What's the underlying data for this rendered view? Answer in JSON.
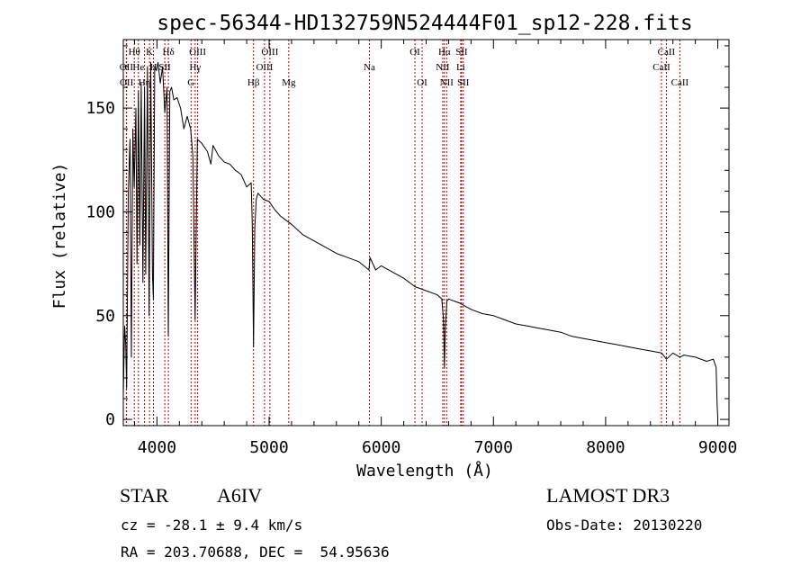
{
  "chart_data": {
    "type": "line",
    "title": "spec-56344-HD132759N524444F01_sp12-228.fits",
    "xlabel": "Wavelength (Å)",
    "ylabel": "Flux (relative)",
    "xlim": [
      3700,
      9100
    ],
    "ylim": [
      -3,
      183
    ],
    "xticks": [
      4000,
      5000,
      6000,
      7000,
      8000,
      9000
    ],
    "yticks": [
      0,
      50,
      100,
      150
    ],
    "xtick_labels": [
      "4000",
      "5000",
      "6000",
      "7000",
      "8000",
      "9000"
    ],
    "ytick_labels": [
      "0",
      "50",
      "100",
      "150"
    ],
    "series": [
      {
        "name": "flux",
        "x": [
          3700,
          3712,
          3722,
          3730,
          3745,
          3760,
          3772,
          3785,
          3797,
          3812,
          3822,
          3835,
          3848,
          3860,
          3875,
          3889,
          3900,
          3915,
          3930,
          3945,
          3960,
          3968,
          3980,
          3995,
          4010,
          4030,
          4050,
          4070,
          4090,
          4101,
          4115,
          4130,
          4150,
          4180,
          4210,
          4240,
          4270,
          4300,
          4320,
          4340,
          4360,
          4380,
          4400,
          4450,
          4481,
          4500,
          4550,
          4600,
          4650,
          4700,
          4750,
          4800,
          4840,
          4850,
          4861,
          4872,
          4885,
          4900,
          4950,
          5000,
          5050,
          5100,
          5150,
          5200,
          5300,
          5400,
          5500,
          5600,
          5700,
          5800,
          5890,
          5900,
          5950,
          6000,
          6100,
          6200,
          6300,
          6400,
          6500,
          6540,
          6555,
          6563,
          6571,
          6585,
          6600,
          6700,
          6800,
          6900,
          7000,
          7100,
          7200,
          7300,
          7400,
          7500,
          7600,
          7700,
          7800,
          7900,
          8000,
          8100,
          8200,
          8300,
          8400,
          8500,
          8542,
          8600,
          8662,
          8700,
          8800,
          8900,
          8960,
          8985,
          8995,
          9000
        ],
        "y": [
          12,
          45,
          36,
          15,
          110,
          135,
          30,
          140,
          112,
          150,
          75,
          158,
          84,
          162,
          66,
          160,
          70,
          170,
          50,
          172,
          70,
          58,
          170,
          168,
          172,
          162,
          170,
          148,
          160,
          40,
          158,
          160,
          154,
          155,
          150,
          140,
          146,
          140,
          127,
          48,
          135,
          134,
          133,
          129,
          123,
          132,
          127,
          124,
          123,
          120,
          118,
          112,
          114,
          94,
          35,
          92,
          106,
          109,
          106,
          105,
          101,
          98,
          96,
          94,
          89,
          86,
          83,
          80,
          78,
          76,
          72,
          78,
          72,
          74,
          71,
          68,
          64,
          62,
          60,
          58,
          48,
          25,
          44,
          57,
          58,
          56,
          53,
          51,
          50,
          48,
          46,
          45,
          44,
          43,
          42,
          40,
          39,
          38,
          37,
          36,
          35,
          34,
          33,
          32,
          29,
          32,
          30,
          31,
          30,
          28,
          29,
          25,
          6,
          1
        ]
      }
    ],
    "lines": [
      {
        "name": "Hθ",
        "wave": 3798,
        "row": 1
      },
      {
        "name": "OII",
        "wave": 3727,
        "row": 2
      },
      {
        "name": "OII",
        "wave": 3729,
        "row": 3
      },
      {
        "name": "He",
        "wave": 3835,
        "row": 2
      },
      {
        "name": "Hη",
        "wave": 3889,
        "row": 3
      },
      {
        "name": "K",
        "wave": 3934,
        "row": 1
      },
      {
        "name": "H",
        "wave": 3969,
        "row": 2
      },
      {
        "name": "SII",
        "wave": 4070,
        "row": 2
      },
      {
        "name": "Hδ",
        "wave": 4102,
        "row": 1
      },
      {
        "name": "OIII",
        "wave": 4363,
        "row": 1
      },
      {
        "name": "Hγ",
        "wave": 4341,
        "row": 2
      },
      {
        "name": "G",
        "wave": 4304,
        "row": 3
      },
      {
        "name": "Hβ",
        "wave": 4861,
        "row": 3
      },
      {
        "name": "OIII",
        "wave": 5007,
        "row": 1
      },
      {
        "name": "OIII",
        "wave": 4959,
        "row": 2
      },
      {
        "name": "Mg",
        "wave": 5175,
        "row": 3
      },
      {
        "name": "Na",
        "wave": 5894,
        "row": 2
      },
      {
        "name": "OI",
        "wave": 6300,
        "row": 1
      },
      {
        "name": "OI",
        "wave": 6364,
        "row": 3
      },
      {
        "name": "Hα",
        "wave": 6563,
        "row": 1
      },
      {
        "name": "NII",
        "wave": 6548,
        "row": 2
      },
      {
        "name": "NII",
        "wave": 6583,
        "row": 3
      },
      {
        "name": "SII",
        "wave": 6716,
        "row": 1
      },
      {
        "name": "Li",
        "wave": 6708,
        "row": 2
      },
      {
        "name": "SII",
        "wave": 6731,
        "row": 3
      },
      {
        "name": "CaII",
        "wave": 8542,
        "row": 1
      },
      {
        "name": "CaII",
        "wave": 8498,
        "row": 2
      },
      {
        "name": "CaII",
        "wave": 8662,
        "row": 3
      }
    ]
  },
  "info": {
    "class": "STAR",
    "subclass": "A6IV",
    "survey": "LAMOST DR3",
    "cz": "cz = -28.1 ± 9.4 km/s",
    "obs_date": "Obs-Date: 20130220",
    "coords": "RA = 203.70688, DEC =  54.95636"
  },
  "colors": {
    "spectrum": "#000000",
    "line_marker": "#b00000",
    "axes": "#000000"
  }
}
